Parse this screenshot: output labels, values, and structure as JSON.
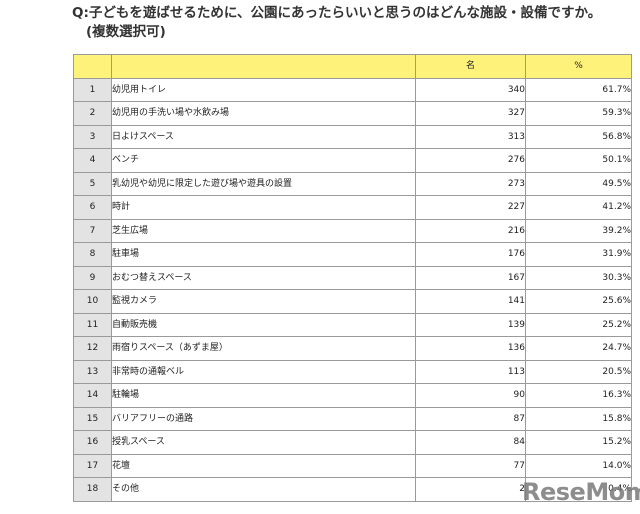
{
  "question": {
    "line1": "Q:子どもを遊ばせるために、公園にあったらいいと思うのはどんな施設・設備ですか。",
    "line2": "(複数選択可)"
  },
  "table": {
    "headers": {
      "rank": "",
      "item": "",
      "count": "名",
      "percent": "%"
    },
    "rows": [
      {
        "rank": "1",
        "item": "幼児用トイレ",
        "count": "340",
        "percent": "61.7%"
      },
      {
        "rank": "2",
        "item": "幼児用の手洗い場や水飲み場",
        "count": "327",
        "percent": "59.3%"
      },
      {
        "rank": "3",
        "item": "日よけスペース",
        "count": "313",
        "percent": "56.8%"
      },
      {
        "rank": "4",
        "item": "ベンチ",
        "count": "276",
        "percent": "50.1%"
      },
      {
        "rank": "5",
        "item": "乳幼児や幼児に限定した遊び場や遊具の設置",
        "count": "273",
        "percent": "49.5%"
      },
      {
        "rank": "6",
        "item": "時計",
        "count": "227",
        "percent": "41.2%"
      },
      {
        "rank": "7",
        "item": "芝生広場",
        "count": "216",
        "percent": "39.2%"
      },
      {
        "rank": "8",
        "item": "駐車場",
        "count": "176",
        "percent": "31.9%"
      },
      {
        "rank": "9",
        "item": "おむつ替えスペース",
        "count": "167",
        "percent": "30.3%"
      },
      {
        "rank": "10",
        "item": "監視カメラ",
        "count": "141",
        "percent": "25.6%"
      },
      {
        "rank": "11",
        "item": "自動販売機",
        "count": "139",
        "percent": "25.2%"
      },
      {
        "rank": "12",
        "item": "雨宿りスペース（あずま屋）",
        "count": "136",
        "percent": "24.7%"
      },
      {
        "rank": "13",
        "item": "非常時の通報ベル",
        "count": "113",
        "percent": "20.5%"
      },
      {
        "rank": "14",
        "item": "駐輪場",
        "count": "90",
        "percent": "16.3%"
      },
      {
        "rank": "15",
        "item": "バリアフリーの通路",
        "count": "87",
        "percent": "15.8%"
      },
      {
        "rank": "16",
        "item": "授乳スペース",
        "count": "84",
        "percent": "15.2%"
      },
      {
        "rank": "17",
        "item": "花壇",
        "count": "77",
        "percent": "14.0%"
      },
      {
        "rank": "18",
        "item": "その他",
        "count": "2",
        "percent": "0.4%"
      }
    ]
  },
  "watermark": "ReseMom",
  "colors": {
    "header_bg": "#fff27a",
    "rank_bg": "#e3e3e3",
    "border": "#9a9a9a"
  }
}
